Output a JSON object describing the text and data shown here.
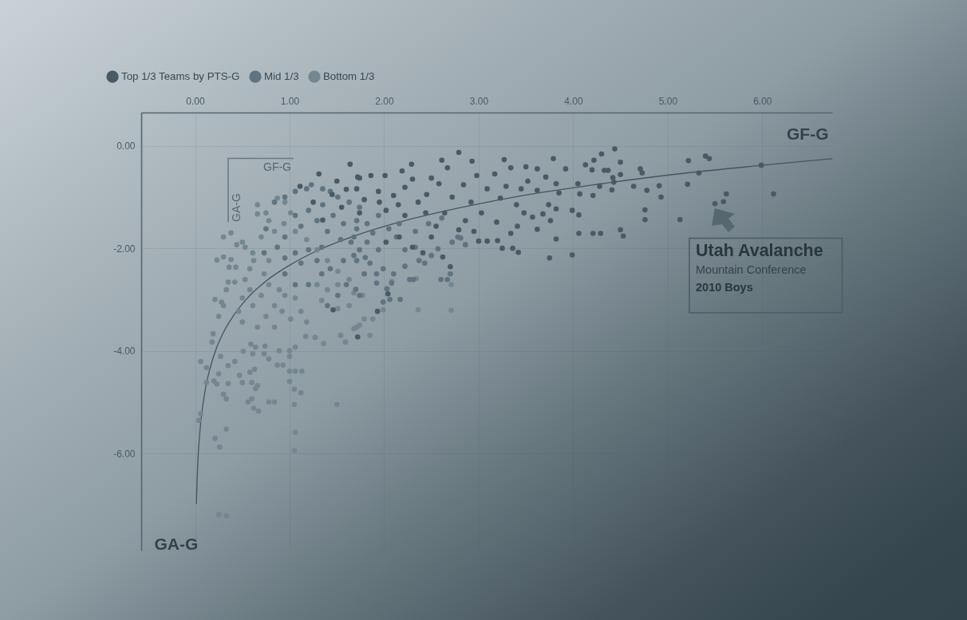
{
  "chart_data": {
    "type": "scatter",
    "title": "Utah Avalanche",
    "subtitle": "Mountain Conference",
    "xlabel": "GF-G",
    "ylabel": "GA-G",
    "annotations": [
      "GF-G",
      "GA-G",
      "2010 Boys"
    ],
    "xlim": [
      -0.57,
      6.74
    ],
    "ylim": [
      -7.9,
      0.65
    ],
    "xticks": [
      {
        "value": 0,
        "label": "0.00"
      },
      {
        "value": 1,
        "label": "1.00"
      },
      {
        "value": 2,
        "label": "2.00"
      },
      {
        "value": 3,
        "label": "3.00"
      },
      {
        "value": 4,
        "label": "4.00"
      },
      {
        "value": 5,
        "label": "5.00"
      },
      {
        "value": 6,
        "label": "6.00"
      }
    ],
    "yticks": [
      {
        "value": 0,
        "label": "0.00"
      },
      {
        "value": -2,
        "label": "-2.00"
      },
      {
        "value": -4,
        "label": "-4.00"
      },
      {
        "value": -6,
        "label": "-6.00"
      }
    ],
    "grid": true,
    "legend": "top left",
    "marker": "circle",
    "series": [
      {
        "name": "Top 1/3 Teams by PTS-G",
        "color": "#4a5a65",
        "x": [
          6.12,
          5.99,
          4.44,
          4.3,
          4.22,
          4.5,
          4.2,
          4.33,
          4.37,
          4.5,
          4.42,
          4.43,
          4.28,
          4.41,
          4.21,
          4.71,
          4.73,
          4.64,
          4.78,
          4.91,
          4.93,
          4.76,
          4.76,
          4.5,
          4.53,
          4.21,
          4.29,
          5.13,
          5.21,
          5.22,
          5.33,
          5.4,
          5.44,
          5.62,
          5.59,
          5.5,
          2.79,
          2.61,
          2.29,
          2.93,
          3.27,
          3.79,
          3.5,
          3.62,
          3.92,
          4.13,
          2.67,
          2.19,
          1.86,
          1.72,
          2.01,
          2.5,
          2.98,
          3.17,
          3.34,
          3.52,
          3.71,
          3.82,
          4.05,
          1.71,
          1.94,
          2.22,
          2.58,
          2.84,
          3.09,
          3.29,
          3.45,
          3.62,
          3.85,
          4.07,
          1.79,
          2.1,
          2.36,
          2.72,
          2.92,
          3.23,
          3.4,
          3.74,
          3.82,
          3.99,
          1.74,
          2.02,
          2.22,
          2.44,
          2.64,
          2.86,
          3.03,
          3.19,
          3.48,
          3.57,
          3.68,
          3.76,
          4.06,
          3.82,
          3.75,
          3.99,
          4.06,
          3.41,
          3.62,
          3.34,
          3.2,
          3.09,
          3.0,
          3.25,
          3.36,
          3.42,
          2.95,
          2.79,
          2.55,
          2.5,
          2.41,
          2.62,
          2.7,
          2.16,
          2.3,
          2.02,
          1.64,
          1.31,
          1.11,
          1.5,
          1.25,
          1.55,
          1.35,
          2.04,
          1.93,
          1.72,
          1.46,
          1.74,
          1.45,
          1.6,
          1.95,
          2.3,
          2.45,
          2.15
        ],
        "values": [
          -0.94,
          -0.38,
          -0.06,
          -0.16,
          -0.28,
          -0.32,
          -0.47,
          -0.48,
          -0.48,
          -0.56,
          -0.62,
          -0.71,
          -0.79,
          -0.86,
          -0.97,
          -0.45,
          -0.53,
          -0.79,
          -0.87,
          -0.78,
          -1.0,
          -1.25,
          -1.44,
          -1.64,
          -1.76,
          -1.71,
          -1.71,
          -1.44,
          -0.75,
          -0.29,
          -0.53,
          -0.2,
          -0.25,
          -0.94,
          -1.09,
          -1.13,
          -0.13,
          -0.28,
          -0.36,
          -0.3,
          -0.27,
          -0.25,
          -0.41,
          -0.45,
          -0.45,
          -0.37,
          -0.43,
          -0.49,
          -0.58,
          -0.61,
          -0.58,
          -0.63,
          -0.58,
          -0.55,
          -0.43,
          -0.69,
          -0.61,
          -0.74,
          -0.74,
          -0.84,
          -0.89,
          -0.81,
          -0.74,
          -0.76,
          -0.84,
          -0.79,
          -0.84,
          -0.87,
          -0.92,
          -0.94,
          -1.05,
          -0.97,
          -1.1,
          -1.0,
          -1.1,
          -1.02,
          -1.15,
          -1.15,
          -1.23,
          -1.26,
          -1.31,
          -1.26,
          -1.36,
          -1.31,
          -1.31,
          -1.46,
          -1.31,
          -1.49,
          -1.31,
          -1.39,
          -1.33,
          -1.46,
          -1.35,
          -1.82,
          -2.19,
          -2.13,
          -1.71,
          -1.57,
          -1.63,
          -1.71,
          -1.85,
          -1.86,
          -1.86,
          -2.0,
          -2.0,
          -2.08,
          -1.67,
          -1.64,
          -1.57,
          -1.78,
          -2.09,
          -2.17,
          -2.36,
          -1.78,
          -1.98,
          -1.88,
          -0.36,
          -0.55,
          -0.79,
          -0.69,
          -1.1,
          -1.2,
          -1.45,
          -2.89,
          -3.23,
          -3.73,
          -3.2,
          -0.63,
          -0.95,
          -0.85,
          -1.1,
          -0.65,
          -0.95,
          -1.15
        ]
      },
      {
        "name": "Mid 1/3",
        "color": "#5f7380",
        "x": [
          1.71,
          1.82,
          1.74,
          1.94,
          1.85,
          1.71,
          1.79,
          1.92,
          1.99,
          2.1,
          2.22,
          2.27,
          2.03,
          1.92,
          1.74,
          1.99,
          2.06,
          2.17,
          2.43,
          2.37,
          2.5,
          2.57,
          2.7,
          2.6,
          2.67,
          2.33,
          2.22,
          2.13,
          2.05,
          1.82,
          1.94,
          2.16,
          2.33,
          2.47,
          2.61,
          2.78,
          2.86,
          2.72,
          2.81,
          2.08,
          2.31,
          1.65,
          0.84,
          0.95,
          1.06,
          1.18,
          1.23,
          1.35,
          1.43,
          1.51,
          1.63,
          1.74,
          1.35,
          1.2,
          1.06,
          1.12,
          1.29,
          1.46,
          1.57,
          1.71,
          1.4,
          1.54,
          1.68,
          1.88,
          1.34,
          1.2,
          1.06,
          0.95,
          1.12,
          1.29,
          1.43,
          1.57,
          1.68,
          1.8,
          1.34,
          1.2,
          1.6,
          1.7,
          1.51,
          1.4,
          1.06,
          0.95,
          0.87,
          0.73,
          0.75,
          0.95
        ],
        "values": [
          -1.62,
          -1.88,
          -2.03,
          -2.03,
          -2.29,
          -2.24,
          -2.5,
          -2.5,
          -2.4,
          -2.5,
          -2.35,
          -2.61,
          -2.79,
          -2.68,
          -2.92,
          -3.05,
          -3.0,
          -3.0,
          -2.29,
          -2.24,
          -2.14,
          -2.01,
          -2.5,
          -2.61,
          -2.61,
          -1.98,
          -2.03,
          -1.78,
          -1.62,
          -1.52,
          -1.36,
          -1.52,
          -1.67,
          -1.52,
          -1.41,
          -1.78,
          -1.93,
          -1.88,
          -1.8,
          -2.68,
          -2.61,
          -1.88,
          -1.1,
          -1.0,
          -0.89,
          -0.84,
          -0.76,
          -0.84,
          -0.89,
          -1.0,
          -1.1,
          -1.2,
          -1.15,
          -1.26,
          -1.36,
          -1.57,
          -1.46,
          -1.36,
          -1.52,
          -1.46,
          -1.67,
          -1.83,
          -1.78,
          -1.7,
          -1.98,
          -2.03,
          -2.09,
          -2.19,
          -2.29,
          -2.24,
          -2.4,
          -2.24,
          -2.14,
          -2.18,
          -2.5,
          -2.71,
          -2.71,
          -2.8,
          -2.92,
          -3.12,
          -2.71,
          -2.5,
          -1.98,
          -2.09,
          -1.62,
          -1.78
        ]
      },
      {
        "name": "Bottom 1/3",
        "color": "#74868f",
        "x": [
          0.3,
          0.38,
          0.23,
          0.3,
          0.38,
          0.44,
          0.36,
          0.43,
          0.35,
          0.42,
          0.33,
          0.21,
          0.28,
          0.3,
          0.25,
          0.19,
          0.5,
          0.53,
          0.61,
          0.62,
          0.58,
          0.53,
          0.58,
          0.5,
          0.46,
          0.5,
          0.61,
          0.7,
          0.75,
          0.66,
          0.84,
          0.92,
          0.84,
          0.78,
          0.89,
          0.66,
          0.7,
          0.78,
          0.73,
          0.78,
          0.06,
          0.04,
          0.06,
          0.21,
          0.25,
          0.33,
          0.26,
          0.33,
          0.12,
          0.12,
          0.2,
          0.23,
          0.25,
          0.3,
          0.33,
          0.35,
          0.35,
          0.42,
          0.27,
          0.18,
          0.5,
          0.47,
          0.58,
          0.6,
          0.63,
          0.56,
          0.6,
          0.62,
          0.67,
          0.64,
          0.66,
          0.78,
          0.84,
          0.87,
          0.93,
          0.78,
          0.73,
          0.61,
          0.59,
          0.51,
          0.64,
          0.74,
          1.0,
          1.06,
          1.13,
          1.0,
          1.05,
          1.12,
          1.05,
          1.06,
          1.05,
          1.5,
          1.0,
          1.0,
          0.89,
          1.06,
          1.17,
          1.27,
          1.36,
          1.54,
          1.59,
          1.68,
          1.74,
          1.01,
          1.18,
          1.12,
          1.06,
          0.95,
          1.34,
          1.29,
          0.66,
          0.75,
          0.87,
          0.95,
          1.01,
          0.94,
          0.84,
          1.06,
          1.18,
          1.29,
          1.4,
          1.51,
          1.63,
          1.77,
          1.63,
          1.51,
          1.4,
          1.51,
          1.71,
          1.79,
          1.85,
          2.08,
          2.36,
          2.71,
          1.99,
          1.88,
          1.68,
          2.34,
          2.71
        ],
        "values": [
          -1.78,
          -1.7,
          -2.23,
          -2.17,
          -2.22,
          -1.93,
          -2.37,
          -2.37,
          -2.66,
          -2.66,
          -2.81,
          -3.0,
          -3.05,
          -3.12,
          -3.33,
          -3.67,
          -1.88,
          -1.98,
          -2.09,
          -2.24,
          -2.4,
          -2.61,
          -2.81,
          -2.97,
          -3.23,
          -3.44,
          -3.12,
          -2.92,
          -3.33,
          -3.54,
          -3.54,
          -3.23,
          -3.12,
          -2.71,
          -2.81,
          -1.33,
          -1.78,
          -1.46,
          -2.5,
          -2.24,
          -4.21,
          -5.36,
          -5.23,
          -5.71,
          -7.2,
          -7.22,
          -5.88,
          -5.53,
          -4.33,
          -4.62,
          -4.59,
          -4.65,
          -4.45,
          -4.85,
          -4.94,
          -4.64,
          -4.29,
          -4.21,
          -4.11,
          -3.83,
          -4.62,
          -4.48,
          -4.42,
          -4.62,
          -4.36,
          -5.0,
          -4.94,
          -5.12,
          -5.18,
          -4.74,
          -4.68,
          -5.0,
          -5.0,
          -4.28,
          -4.28,
          -4.16,
          -4.06,
          -4.06,
          -3.87,
          -4.01,
          -3.93,
          -3.91,
          -4.4,
          -4.4,
          -4.4,
          -4.6,
          -4.75,
          -4.82,
          -5.05,
          -5.59,
          -5.95,
          -5.05,
          -4.0,
          -4.11,
          -4.0,
          -3.93,
          -3.72,
          -3.74,
          -3.86,
          -3.7,
          -3.83,
          -3.57,
          -3.5,
          -3.38,
          -3.44,
          -3.23,
          -2.97,
          -2.92,
          -3.02,
          -2.71,
          -1.15,
          -1.31,
          -1.02,
          -1.1,
          -1.31,
          -1.52,
          -1.67,
          -1.67,
          -1.83,
          -2.03,
          -2.24,
          -2.45,
          -2.61,
          -2.92,
          -3.12,
          -3.18,
          -2.81,
          -2.71,
          -3.54,
          -3.38,
          -3.7,
          -2.65,
          -3.2,
          -3.21,
          -3.2,
          -3.38,
          -2.87,
          -2.59,
          -2.71
        ]
      },
      {
        "type": "line",
        "color": "#46545e",
        "marker": "none",
        "x": [
          0.014,
          0.02,
          0.03,
          0.045,
          0.065,
          0.09,
          0.12,
          0.16,
          0.22,
          0.3,
          0.4,
          0.55,
          0.75,
          1.0,
          1.3,
          1.7,
          2.2,
          2.8,
          3.5,
          4.3,
          5.2,
          6.0,
          6.74
        ],
        "values": [
          -6.98,
          -6.59,
          -6.15,
          -5.71,
          -5.31,
          -4.96,
          -4.64,
          -4.33,
          -3.98,
          -3.64,
          -3.33,
          -2.98,
          -2.64,
          -2.33,
          -2.04,
          -1.75,
          -1.47,
          -1.21,
          -0.96,
          -0.74,
          -0.53,
          -0.38,
          -0.25
        ]
      }
    ]
  }
}
